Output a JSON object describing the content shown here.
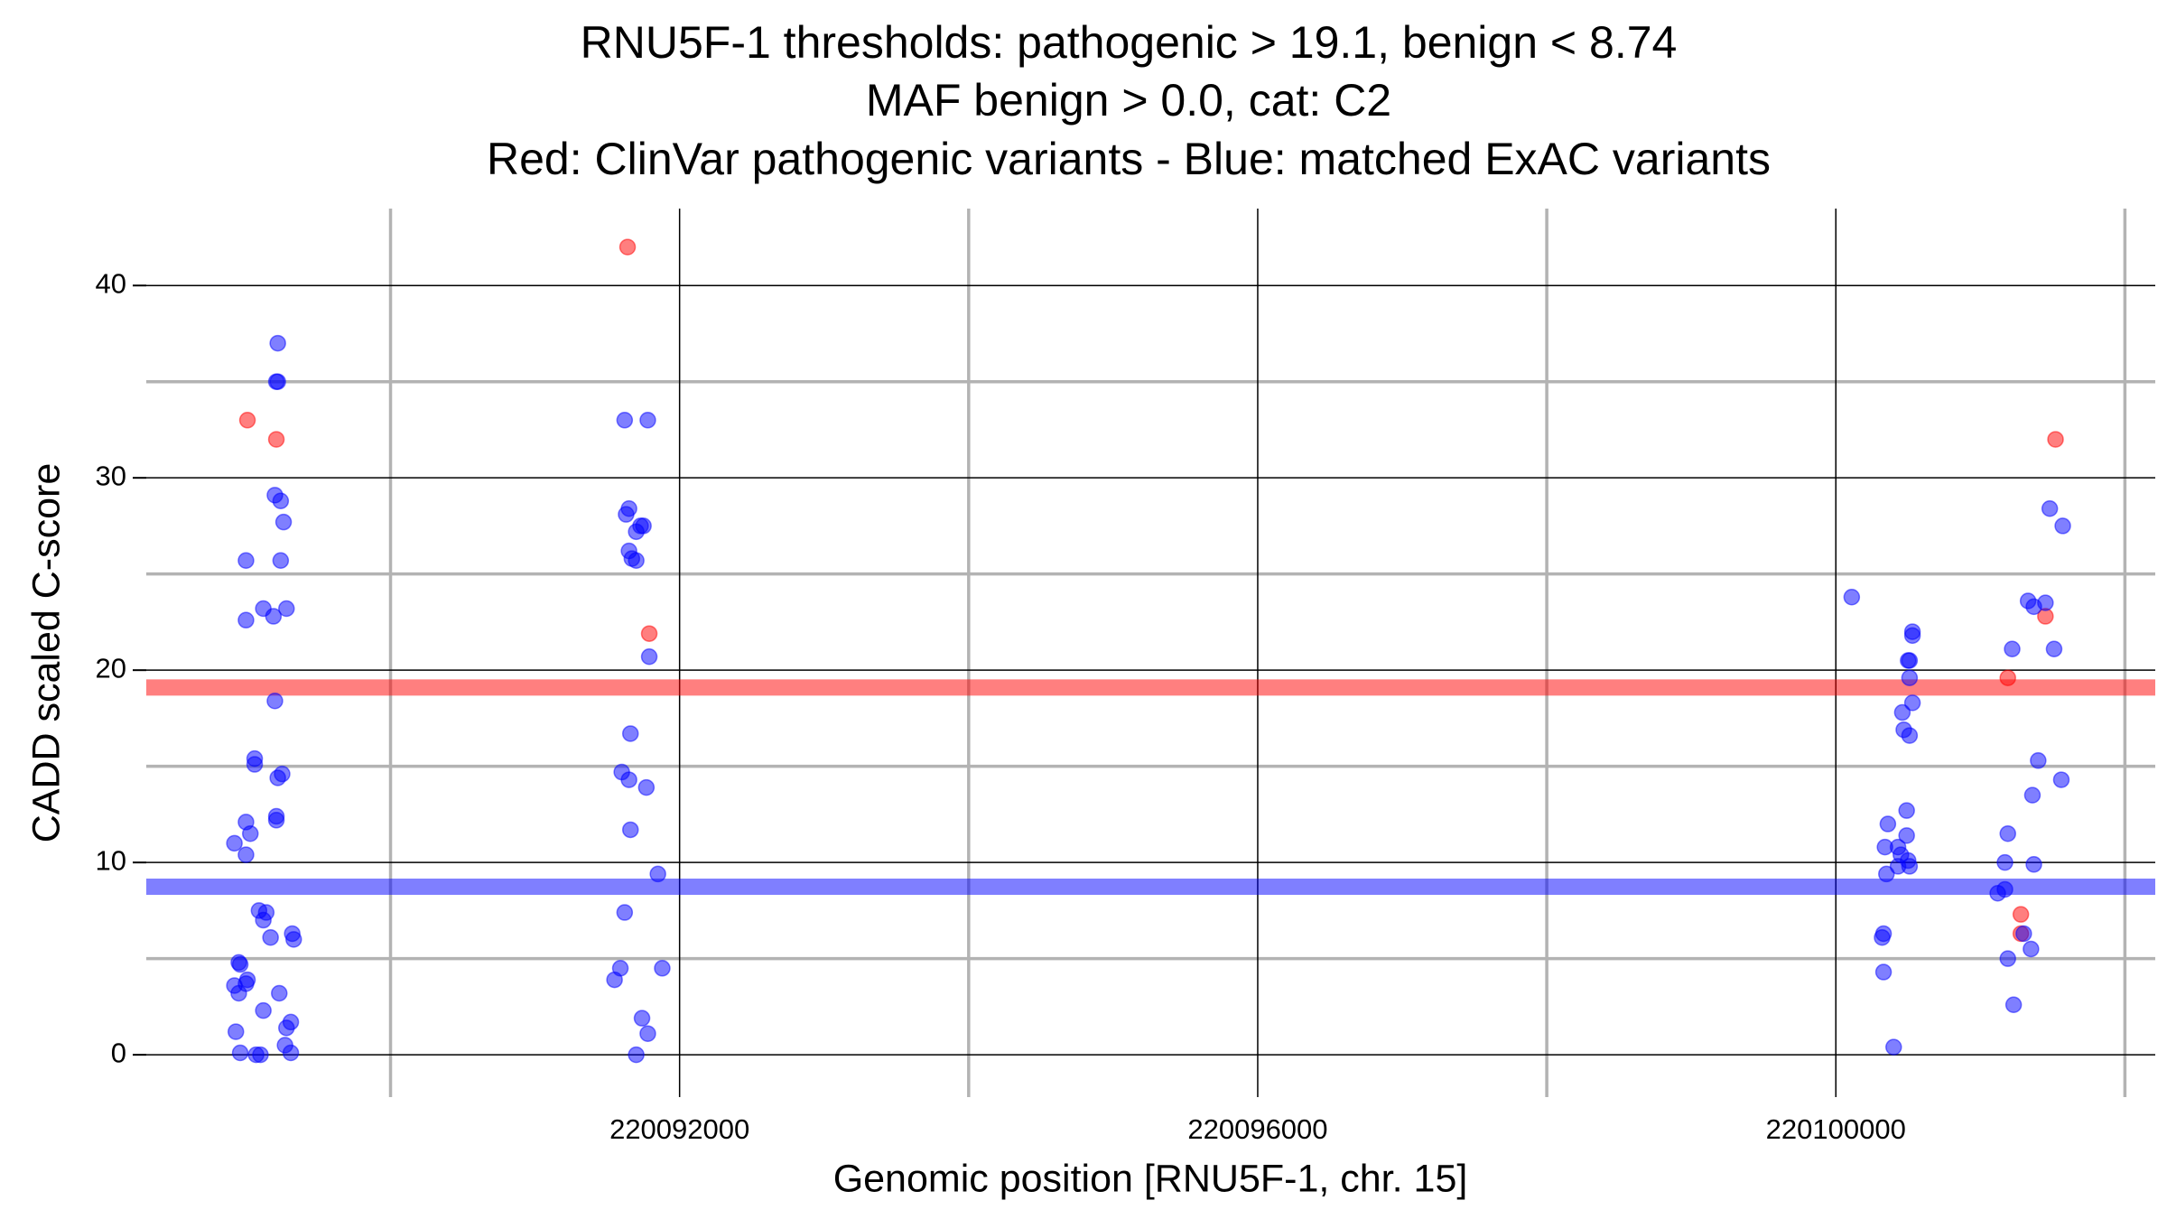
{
  "chart_data": {
    "type": "scatter",
    "title": [
      "RNU5F-1 thresholds: pathogenic > 19.1, benign < 8.74",
      "MAF benign > 0.0, cat: C2",
      "Red: ClinVar pathogenic variants - Blue: matched ExAC variants"
    ],
    "xlabel": "Genomic position [RNU5F-1, chr. 15]",
    "ylabel": "CADD scaled C-score",
    "xlim": [
      220088310,
      220102210
    ],
    "ylim": [
      -2.2,
      44
    ],
    "xticks": [
      220092000,
      220096000,
      220100000
    ],
    "yticks": [
      0,
      10,
      20,
      30,
      40
    ],
    "xminorticks": [
      220090000,
      220094000,
      220098000,
      220102000
    ],
    "yminorticks": [
      5,
      15,
      25,
      35
    ],
    "grid": true,
    "hlines": [
      {
        "value": 19.1,
        "color": "#ff0000"
      },
      {
        "value": 8.74,
        "color": "#0000ff"
      }
    ],
    "series": [
      {
        "color": "#ff0000",
        "x": [
          220089010,
          220089210,
          220091640,
          220091790,
          220101520,
          220101450,
          220101190,
          220101280,
          220101280
        ],
        "values": [
          33.0,
          32.0,
          42.0,
          21.9,
          32.0,
          22.8,
          19.6,
          7.3,
          6.3
        ]
      },
      {
        "color": "#0000ff",
        "x": [
          220089220,
          220089220,
          220089210,
          220089200,
          220089240,
          220089260,
          220089000,
          220089240,
          220089120,
          220089280,
          220089000,
          220089190,
          220089200,
          220089060,
          220089060,
          220089250,
          220089220,
          220089000,
          220089210,
          220089210,
          220089030,
          220088920,
          220089000,
          220089090,
          220089140,
          220089120,
          220089170,
          220089320,
          220089330,
          220088950,
          220088960,
          220088920,
          220089010,
          220089000,
          220088950,
          220089230,
          220089120,
          220089310,
          220089280,
          220088930,
          220089270,
          220088960,
          220089070,
          220089100,
          220089310,
          220091620,
          220091780,
          220091650,
          220091630,
          220091730,
          220091700,
          220091750,
          220091650,
          220091670,
          220091700,
          220091790,
          220091660,
          220091600,
          220091650,
          220091770,
          220091660,
          220091850,
          220091620,
          220091590,
          220091550,
          220091880,
          220091740,
          220091780,
          220091700,
          220100110,
          220100530,
          220100530,
          220100510,
          220100500,
          220100510,
          220100530,
          220100460,
          220100470,
          220100510,
          220100490,
          220100360,
          220100490,
          220100340,
          220100430,
          220100450,
          220100500,
          220100510,
          220100430,
          220100350,
          220100330,
          220100320,
          220100330,
          220100400,
          220101480,
          220101570,
          220101330,
          220101370,
          220101450,
          220101220,
          220101510,
          220101400,
          220101560,
          220101360,
          220101190,
          220101170,
          220101370,
          220101170,
          220101120,
          220101300,
          220101190,
          220101350,
          220101230
        ],
        "values": [
          37,
          35,
          35,
          29.1,
          28.8,
          27.7,
          25.7,
          25.7,
          23.2,
          23.2,
          22.6,
          22.8,
          18.4,
          15.4,
          15.1,
          14.6,
          14.4,
          12.1,
          12.4,
          12.2,
          11.5,
          11.0,
          10.4,
          7.5,
          7.4,
          7.0,
          6.1,
          6.3,
          6.0,
          4.8,
          4.7,
          3.6,
          3.9,
          3.7,
          3.2,
          3.2,
          2.3,
          1.7,
          1.4,
          1.2,
          0.5,
          0.1,
          0,
          0,
          0.1,
          33,
          33,
          28.4,
          28.1,
          27.5,
          27.2,
          27.5,
          26.2,
          25.8,
          25.7,
          20.7,
          16.7,
          14.7,
          14.3,
          13.9,
          11.7,
          9.4,
          7.4,
          4.5,
          3.9,
          4.5,
          1.9,
          1.1,
          0,
          23.8,
          22.0,
          21.8,
          20.5,
          20.5,
          19.6,
          18.3,
          17.8,
          16.9,
          16.6,
          12.7,
          12.0,
          11.4,
          10.8,
          10.8,
          10.4,
          10.1,
          9.8,
          9.8,
          9.4,
          6.3,
          6.1,
          4.3,
          0.4,
          28.4,
          27.5,
          23.6,
          23.3,
          23.5,
          21.1,
          21.1,
          15.3,
          14.3,
          13.5,
          11.5,
          10.0,
          9.9,
          8.6,
          8.4,
          6.3,
          5.0,
          5.5,
          2.6
        ]
      }
    ]
  }
}
